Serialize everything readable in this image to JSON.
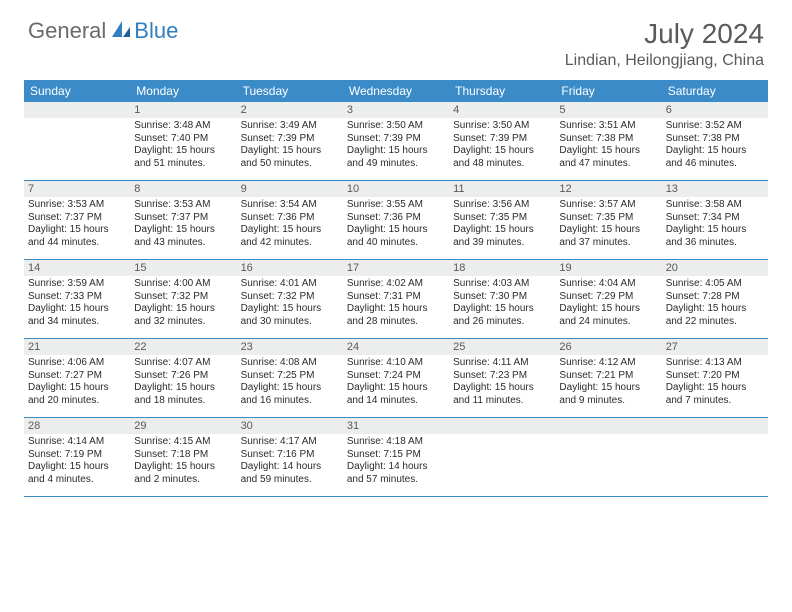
{
  "logo": {
    "general": "General",
    "blue": "Blue"
  },
  "title": "July 2024",
  "location": "Lindian, Heilongjiang, China",
  "colors": {
    "header_bg": "#3b8bc9",
    "header_fg": "#ffffff",
    "daynum_bg": "#eceded",
    "daynum_fg": "#595959",
    "border": "#3b8bc9",
    "logo_grey": "#6a6a6a",
    "logo_blue": "#2f7fc1"
  },
  "day_headers": [
    "Sunday",
    "Monday",
    "Tuesday",
    "Wednesday",
    "Thursday",
    "Friday",
    "Saturday"
  ],
  "weeks": [
    [
      {
        "n": "",
        "sunrise": "",
        "sunset": "",
        "daylight": ""
      },
      {
        "n": "1",
        "sunrise": "3:48 AM",
        "sunset": "7:40 PM",
        "daylight": "15 hours and 51 minutes."
      },
      {
        "n": "2",
        "sunrise": "3:49 AM",
        "sunset": "7:39 PM",
        "daylight": "15 hours and 50 minutes."
      },
      {
        "n": "3",
        "sunrise": "3:50 AM",
        "sunset": "7:39 PM",
        "daylight": "15 hours and 49 minutes."
      },
      {
        "n": "4",
        "sunrise": "3:50 AM",
        "sunset": "7:39 PM",
        "daylight": "15 hours and 48 minutes."
      },
      {
        "n": "5",
        "sunrise": "3:51 AM",
        "sunset": "7:38 PM",
        "daylight": "15 hours and 47 minutes."
      },
      {
        "n": "6",
        "sunrise": "3:52 AM",
        "sunset": "7:38 PM",
        "daylight": "15 hours and 46 minutes."
      }
    ],
    [
      {
        "n": "7",
        "sunrise": "3:53 AM",
        "sunset": "7:37 PM",
        "daylight": "15 hours and 44 minutes."
      },
      {
        "n": "8",
        "sunrise": "3:53 AM",
        "sunset": "7:37 PM",
        "daylight": "15 hours and 43 minutes."
      },
      {
        "n": "9",
        "sunrise": "3:54 AM",
        "sunset": "7:36 PM",
        "daylight": "15 hours and 42 minutes."
      },
      {
        "n": "10",
        "sunrise": "3:55 AM",
        "sunset": "7:36 PM",
        "daylight": "15 hours and 40 minutes."
      },
      {
        "n": "11",
        "sunrise": "3:56 AM",
        "sunset": "7:35 PM",
        "daylight": "15 hours and 39 minutes."
      },
      {
        "n": "12",
        "sunrise": "3:57 AM",
        "sunset": "7:35 PM",
        "daylight": "15 hours and 37 minutes."
      },
      {
        "n": "13",
        "sunrise": "3:58 AM",
        "sunset": "7:34 PM",
        "daylight": "15 hours and 36 minutes."
      }
    ],
    [
      {
        "n": "14",
        "sunrise": "3:59 AM",
        "sunset": "7:33 PM",
        "daylight": "15 hours and 34 minutes."
      },
      {
        "n": "15",
        "sunrise": "4:00 AM",
        "sunset": "7:32 PM",
        "daylight": "15 hours and 32 minutes."
      },
      {
        "n": "16",
        "sunrise": "4:01 AM",
        "sunset": "7:32 PM",
        "daylight": "15 hours and 30 minutes."
      },
      {
        "n": "17",
        "sunrise": "4:02 AM",
        "sunset": "7:31 PM",
        "daylight": "15 hours and 28 minutes."
      },
      {
        "n": "18",
        "sunrise": "4:03 AM",
        "sunset": "7:30 PM",
        "daylight": "15 hours and 26 minutes."
      },
      {
        "n": "19",
        "sunrise": "4:04 AM",
        "sunset": "7:29 PM",
        "daylight": "15 hours and 24 minutes."
      },
      {
        "n": "20",
        "sunrise": "4:05 AM",
        "sunset": "7:28 PM",
        "daylight": "15 hours and 22 minutes."
      }
    ],
    [
      {
        "n": "21",
        "sunrise": "4:06 AM",
        "sunset": "7:27 PM",
        "daylight": "15 hours and 20 minutes."
      },
      {
        "n": "22",
        "sunrise": "4:07 AM",
        "sunset": "7:26 PM",
        "daylight": "15 hours and 18 minutes."
      },
      {
        "n": "23",
        "sunrise": "4:08 AM",
        "sunset": "7:25 PM",
        "daylight": "15 hours and 16 minutes."
      },
      {
        "n": "24",
        "sunrise": "4:10 AM",
        "sunset": "7:24 PM",
        "daylight": "15 hours and 14 minutes."
      },
      {
        "n": "25",
        "sunrise": "4:11 AM",
        "sunset": "7:23 PM",
        "daylight": "15 hours and 11 minutes."
      },
      {
        "n": "26",
        "sunrise": "4:12 AM",
        "sunset": "7:21 PM",
        "daylight": "15 hours and 9 minutes."
      },
      {
        "n": "27",
        "sunrise": "4:13 AM",
        "sunset": "7:20 PM",
        "daylight": "15 hours and 7 minutes."
      }
    ],
    [
      {
        "n": "28",
        "sunrise": "4:14 AM",
        "sunset": "7:19 PM",
        "daylight": "15 hours and 4 minutes."
      },
      {
        "n": "29",
        "sunrise": "4:15 AM",
        "sunset": "7:18 PM",
        "daylight": "15 hours and 2 minutes."
      },
      {
        "n": "30",
        "sunrise": "4:17 AM",
        "sunset": "7:16 PM",
        "daylight": "14 hours and 59 minutes."
      },
      {
        "n": "31",
        "sunrise": "4:18 AM",
        "sunset": "7:15 PM",
        "daylight": "14 hours and 57 minutes."
      },
      {
        "n": "",
        "sunrise": "",
        "sunset": "",
        "daylight": ""
      },
      {
        "n": "",
        "sunrise": "",
        "sunset": "",
        "daylight": ""
      },
      {
        "n": "",
        "sunrise": "",
        "sunset": "",
        "daylight": ""
      }
    ]
  ],
  "labels": {
    "sunrise": "Sunrise:",
    "sunset": "Sunset:",
    "daylight": "Daylight:"
  }
}
